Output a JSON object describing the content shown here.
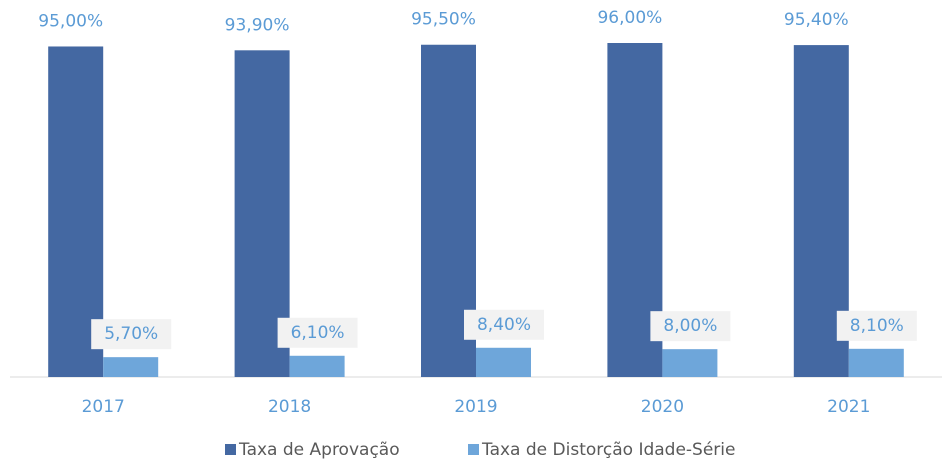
{
  "chart_data": {
    "type": "bar",
    "categories": [
      "2017",
      "2018",
      "2019",
      "2020",
      "2021"
    ],
    "series": [
      {
        "name": "Taxa de Aprovação",
        "color": "#4468a2",
        "values": [
          95.0,
          93.9,
          95.5,
          96.0,
          95.4
        ],
        "value_labels": [
          "95,00%",
          "93,90%",
          "95,50%",
          "96,00%",
          "95,40%"
        ]
      },
      {
        "name": "Taxa de Distorção Idade-Série",
        "color": "#6ea6da",
        "values": [
          5.7,
          6.1,
          8.4,
          8.0,
          8.1
        ],
        "value_labels": [
          "5,70%",
          "6,10%",
          "8,40%",
          "8,00%",
          "8,10%"
        ]
      }
    ]
  }
}
